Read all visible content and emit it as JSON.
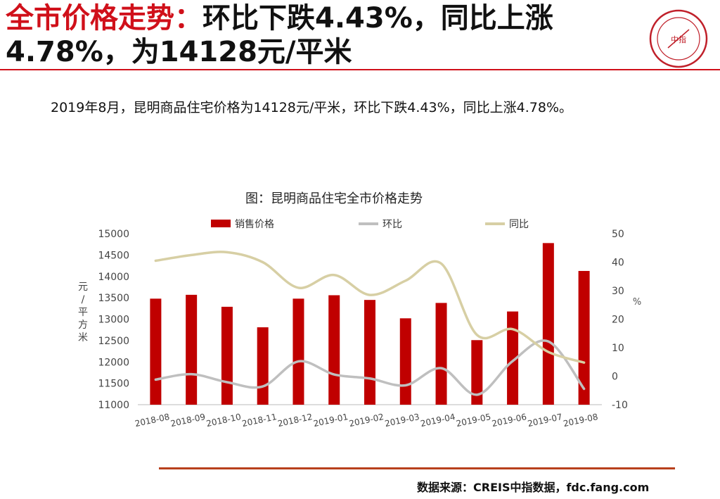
{
  "header": {
    "title_lead": "全市价格走势：",
    "title_rest": "环比下跌4.43%，同比上涨4.78%，为14128元/平米",
    "logo_text": "中指"
  },
  "description": "2019年8月，昆明商品住宅价格为14128元/平米，环比下跌4.43%，同比上涨4.78%。",
  "source": "数据来源：CREIS中指数据，fdc.fang.com",
  "colors": {
    "accent": "#d0101a",
    "bar": "#c00000",
    "mom": "#bfbfbf",
    "yoy": "#d7cfa4"
  },
  "chart_data": {
    "type": "bar",
    "title": "图：昆明商品住宅全市价格走势",
    "categories": [
      "2018-08",
      "2018-09",
      "2018-10",
      "2018-11",
      "2018-12",
      "2019-01",
      "2019-02",
      "2019-03",
      "2019-04",
      "2019-05",
      "2019-06",
      "2019-07",
      "2019-08"
    ],
    "series": [
      {
        "name": "销售价格",
        "type": "bar",
        "axis": "left",
        "values": [
          13480,
          13570,
          13290,
          12810,
          13480,
          13560,
          13450,
          13020,
          13380,
          12510,
          13180,
          14780,
          14128
        ]
      },
      {
        "name": "环比",
        "type": "line",
        "axis": "right",
        "values": [
          -1.2,
          0.7,
          -2.1,
          -3.6,
          5.2,
          0.6,
          -0.8,
          -3.2,
          2.8,
          -6.5,
          5.3,
          12.2,
          -4.43
        ]
      },
      {
        "name": "同比",
        "type": "line",
        "axis": "right",
        "values": [
          40.5,
          42.5,
          43.5,
          40.0,
          31.0,
          35.5,
          28.5,
          33.5,
          39.5,
          14.5,
          16.5,
          8.5,
          4.78
        ]
      }
    ],
    "ylabel": "元/平方米",
    "y2label": "%",
    "ylim": [
      11000,
      15000
    ],
    "y2lim": [
      -10,
      50
    ],
    "yticks": [
      11000,
      11500,
      12000,
      12500,
      13000,
      13500,
      14000,
      14500,
      15000
    ],
    "y2ticks": [
      -10,
      0,
      10,
      20,
      30,
      40,
      50
    ],
    "legend_position": "top",
    "grid": false
  }
}
